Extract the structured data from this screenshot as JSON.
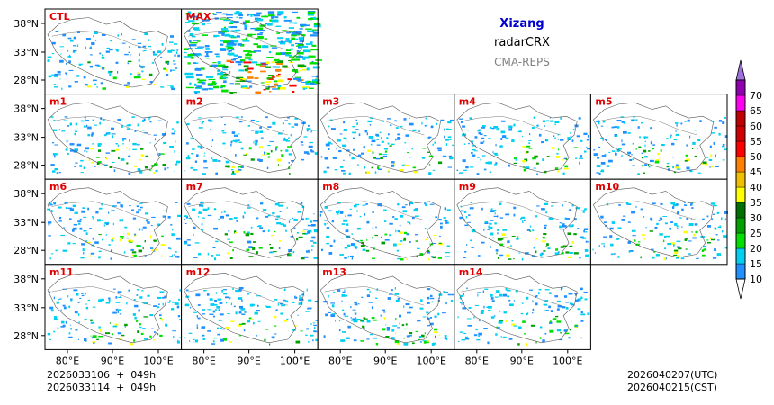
{
  "title": {
    "region": "Xizang",
    "product": "radarCRX",
    "model": "CMA-REPS"
  },
  "panels": [
    "CTL",
    "MAX",
    "m1",
    "m2",
    "m3",
    "m4",
    "m5",
    "m6",
    "m7",
    "m8",
    "m9",
    "m10",
    "m11",
    "m12",
    "m13",
    "m14"
  ],
  "axes": {
    "lat_ticks": [
      "38°N",
      "33°N",
      "28°N"
    ],
    "lon_ticks": [
      "80°E",
      "90°E",
      "100°E"
    ]
  },
  "footer": {
    "init_utc": "2026033106  +  049h",
    "init_cst": "2026033114  +  049h",
    "valid_utc": "2026040207(UTC)",
    "valid_cst": "2026040215(CST)"
  },
  "colorbar": {
    "labels": [
      "10",
      "15",
      "20",
      "25",
      "30",
      "35",
      "40",
      "45",
      "50",
      "55",
      "60",
      "65",
      "70"
    ],
    "colors": [
      "#ffffff",
      "#1e90ff",
      "#00d0f0",
      "#00e000",
      "#00a000",
      "#007000",
      "#ffff00",
      "#f0c000",
      "#ff8000",
      "#ff0000",
      "#d00000",
      "#c00000",
      "#ff00f0",
      "#9000b0",
      "#a070e0"
    ]
  },
  "colors": {
    "label": "#e00000",
    "region_title": "#0000cc",
    "model": "#808080"
  }
}
